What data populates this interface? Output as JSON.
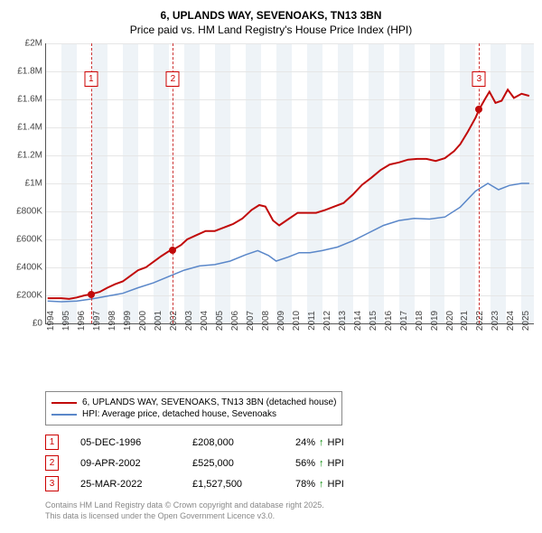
{
  "title": "6, UPLANDS WAY, SEVENOAKS, TN13 3BN",
  "subtitle": "Price paid vs. HM Land Registry's House Price Index (HPI)",
  "chart": {
    "type": "line",
    "ymin": 0,
    "ymax": 2000000,
    "ytick_step": 200000,
    "ytick_labels": [
      "£0",
      "£200K",
      "£400K",
      "£600K",
      "£800K",
      "£1M",
      "£1.2M",
      "£1.4M",
      "£1.6M",
      "£1.8M",
      "£2M"
    ],
    "xmin": 1994,
    "xmax": 2025.8,
    "xtick_labels": [
      "1994",
      "1995",
      "1996",
      "1997",
      "1998",
      "1999",
      "2000",
      "2001",
      "2002",
      "2003",
      "2004",
      "2005",
      "2006",
      "2007",
      "2008",
      "2009",
      "2010",
      "2011",
      "2012",
      "2013",
      "2014",
      "2015",
      "2016",
      "2017",
      "2018",
      "2019",
      "2020",
      "2021",
      "2022",
      "2023",
      "2024",
      "2025"
    ],
    "band_color_odd": "#eef3f7",
    "band_color_even": "#ffffff",
    "grid_color": "#e6e6e6",
    "marker_border": "#cc0000",
    "marker_text": "#cc0000",
    "sale_line_color": "#cc3333",
    "series": [
      {
        "name": "6, UPLANDS WAY, SEVENOAKS, TN13 3BN (detached house)",
        "color": "#c10a0a",
        "width": 2,
        "points": [
          [
            1994.1,
            180000
          ],
          [
            1995.0,
            180000
          ],
          [
            1995.5,
            175000
          ],
          [
            1996.0,
            185000
          ],
          [
            1996.5,
            200000
          ],
          [
            1996.9,
            208000
          ],
          [
            1997.5,
            225000
          ],
          [
            1998.0,
            255000
          ],
          [
            1998.5,
            280000
          ],
          [
            1999.0,
            300000
          ],
          [
            1999.5,
            340000
          ],
          [
            2000.0,
            380000
          ],
          [
            2000.5,
            400000
          ],
          [
            2001.0,
            440000
          ],
          [
            2001.5,
            480000
          ],
          [
            2002.0,
            515000
          ],
          [
            2002.27,
            525000
          ],
          [
            2002.8,
            560000
          ],
          [
            2003.2,
            600000
          ],
          [
            2003.8,
            630000
          ],
          [
            2004.4,
            660000
          ],
          [
            2005.0,
            660000
          ],
          [
            2005.6,
            685000
          ],
          [
            2006.2,
            710000
          ],
          [
            2006.8,
            750000
          ],
          [
            2007.4,
            810000
          ],
          [
            2007.9,
            845000
          ],
          [
            2008.3,
            835000
          ],
          [
            2008.8,
            735000
          ],
          [
            2009.2,
            700000
          ],
          [
            2009.8,
            745000
          ],
          [
            2010.4,
            790000
          ],
          [
            2011.0,
            790000
          ],
          [
            2011.6,
            790000
          ],
          [
            2012.2,
            810000
          ],
          [
            2012.8,
            835000
          ],
          [
            2013.4,
            860000
          ],
          [
            2014.0,
            920000
          ],
          [
            2014.6,
            990000
          ],
          [
            2015.2,
            1040000
          ],
          [
            2015.8,
            1095000
          ],
          [
            2016.4,
            1135000
          ],
          [
            2017.0,
            1150000
          ],
          [
            2017.6,
            1170000
          ],
          [
            2018.2,
            1175000
          ],
          [
            2018.8,
            1175000
          ],
          [
            2019.4,
            1160000
          ],
          [
            2020.0,
            1180000
          ],
          [
            2020.6,
            1230000
          ],
          [
            2021.0,
            1280000
          ],
          [
            2021.5,
            1370000
          ],
          [
            2022.0,
            1470000
          ],
          [
            2022.23,
            1527500
          ],
          [
            2022.6,
            1600000
          ],
          [
            2022.9,
            1655000
          ],
          [
            2023.3,
            1575000
          ],
          [
            2023.7,
            1590000
          ],
          [
            2024.1,
            1670000
          ],
          [
            2024.5,
            1610000
          ],
          [
            2025.0,
            1640000
          ],
          [
            2025.5,
            1625000
          ]
        ]
      },
      {
        "name": "HPI: Average price, detached house, Sevenoaks",
        "color": "#5a87c9",
        "width": 1.5,
        "points": [
          [
            1994.1,
            160000
          ],
          [
            1995.0,
            155000
          ],
          [
            1996.0,
            160000
          ],
          [
            1997.0,
            175000
          ],
          [
            1998.0,
            195000
          ],
          [
            1999.0,
            215000
          ],
          [
            2000.0,
            255000
          ],
          [
            2001.0,
            290000
          ],
          [
            2002.0,
            335000
          ],
          [
            2003.0,
            380000
          ],
          [
            2004.0,
            410000
          ],
          [
            2005.0,
            420000
          ],
          [
            2006.0,
            445000
          ],
          [
            2007.0,
            490000
          ],
          [
            2007.8,
            520000
          ],
          [
            2008.5,
            485000
          ],
          [
            2009.0,
            445000
          ],
          [
            2009.8,
            475000
          ],
          [
            2010.5,
            505000
          ],
          [
            2011.2,
            505000
          ],
          [
            2012.0,
            520000
          ],
          [
            2013.0,
            545000
          ],
          [
            2014.0,
            590000
          ],
          [
            2015.0,
            645000
          ],
          [
            2016.0,
            700000
          ],
          [
            2017.0,
            735000
          ],
          [
            2018.0,
            750000
          ],
          [
            2019.0,
            745000
          ],
          [
            2020.0,
            760000
          ],
          [
            2021.0,
            830000
          ],
          [
            2022.0,
            945000
          ],
          [
            2022.8,
            1000000
          ],
          [
            2023.5,
            955000
          ],
          [
            2024.2,
            985000
          ],
          [
            2025.0,
            1000000
          ],
          [
            2025.5,
            1000000
          ]
        ]
      }
    ],
    "sale_markers": [
      {
        "num": "1",
        "x": 1996.93,
        "y": 208000,
        "dot_color": "#c10a0a",
        "label_y": 1800000
      },
      {
        "num": "2",
        "x": 2002.27,
        "y": 525000,
        "dot_color": "#c10a0a",
        "label_y": 1800000
      },
      {
        "num": "3",
        "x": 2022.23,
        "y": 1527500,
        "dot_color": "#c10a0a",
        "label_y": 1800000
      }
    ]
  },
  "legend": [
    {
      "label": "6, UPLANDS WAY, SEVENOAKS, TN13 3BN (detached house)",
      "color": "#c10a0a"
    },
    {
      "label": "HPI: Average price, detached house, Sevenoaks",
      "color": "#5a87c9"
    }
  ],
  "sales": [
    {
      "num": "1",
      "date": "05-DEC-1996",
      "price": "£208,000",
      "pct": "24%",
      "hpi": "HPI"
    },
    {
      "num": "2",
      "date": "09-APR-2002",
      "price": "£525,000",
      "pct": "56%",
      "hpi": "HPI"
    },
    {
      "num": "3",
      "date": "25-MAR-2022",
      "price": "£1,527,500",
      "pct": "78%",
      "hpi": "HPI"
    }
  ],
  "attribution_line1": "Contains HM Land Registry data © Crown copyright and database right 2025.",
  "attribution_line2": "This data is licensed under the Open Government Licence v3.0."
}
